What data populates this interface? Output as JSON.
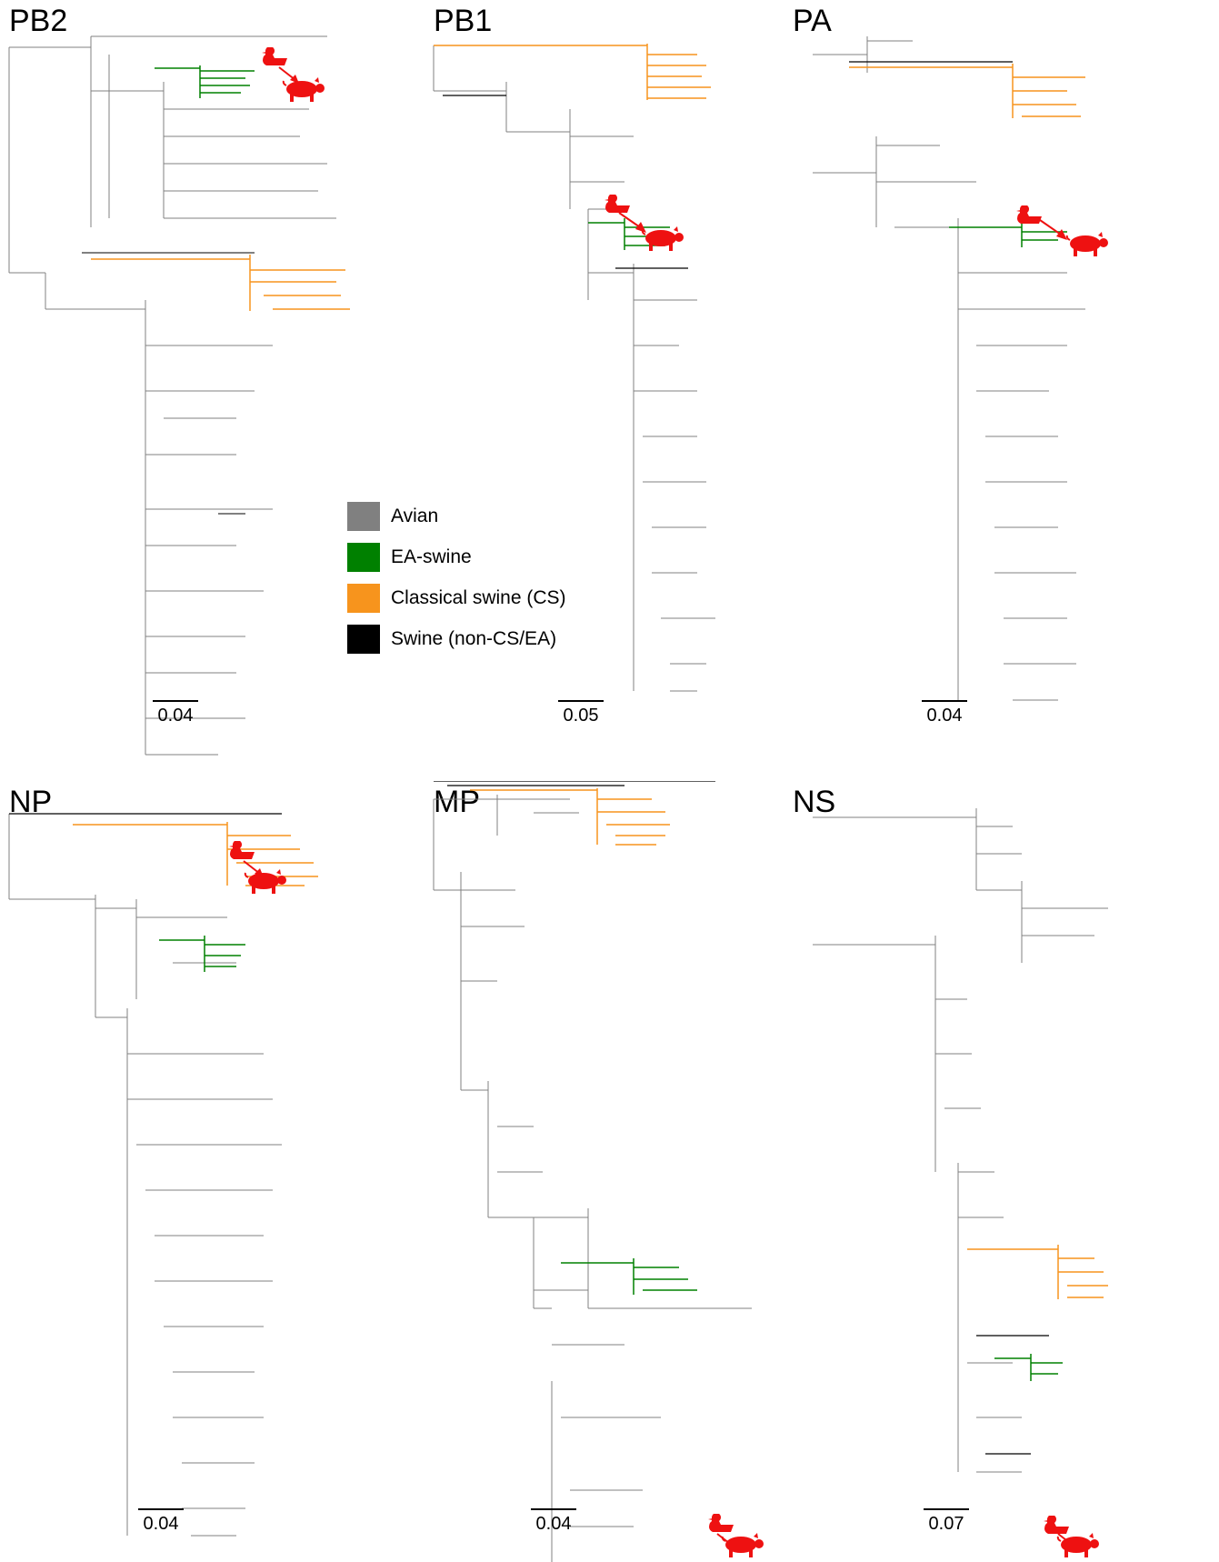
{
  "panels": [
    {
      "id": "pb2",
      "title": "PB2",
      "scale": "0.04"
    },
    {
      "id": "pb1",
      "title": "PB1",
      "scale": "0.05"
    },
    {
      "id": "pa",
      "title": "PA",
      "scale": "0.04"
    },
    {
      "id": "np",
      "title": "NP",
      "scale": "0.04"
    },
    {
      "id": "mp",
      "title": "MP",
      "scale": "0.04"
    },
    {
      "id": "ns",
      "title": "NS",
      "scale": "0.07"
    }
  ],
  "legend": {
    "items": [
      {
        "label": "Avian",
        "color": "#808080"
      },
      {
        "label": "EA-swine",
        "color": "#008000"
      },
      {
        "label": "Classical swine (CS)",
        "color": "#f7941d"
      },
      {
        "label": "Swine (non-CS/EA)",
        "color": "#000000"
      }
    ]
  },
  "icons": {
    "bird": "duck-icon",
    "pig": "pig-icon",
    "arrow": "transmission-arrow-icon"
  },
  "colors": {
    "avian": "#808080",
    "ea": "#008000",
    "cs": "#f7941d",
    "swine": "#000000",
    "host_icon": "#ee1111"
  }
}
